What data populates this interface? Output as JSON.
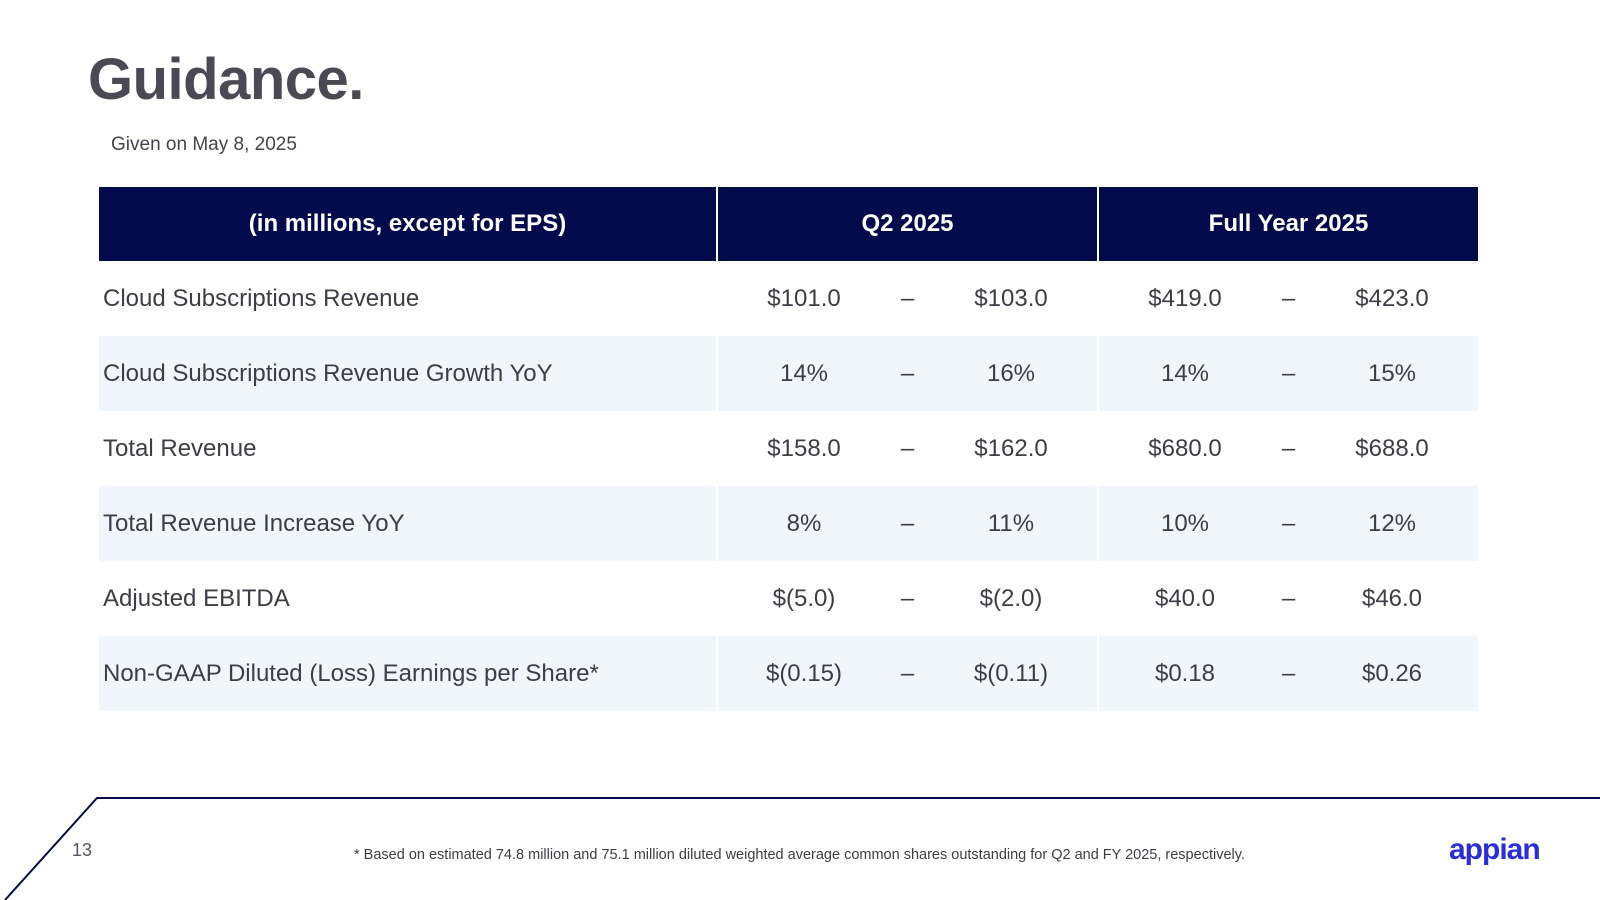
{
  "slide": {
    "title": "Guidance.",
    "subtitle": "Given on May 8, 2025",
    "page_number": "13",
    "footnote": "* Based on estimated 74.8 million and 75.1 million diluted weighted average common shares outstanding for Q2 and FY 2025, respectively.",
    "logo_text": "appian"
  },
  "table": {
    "headers": [
      "(in millions, except for EPS)",
      "Q2 2025",
      "Full Year 2025"
    ],
    "dash": "–",
    "rows": [
      {
        "label": "Cloud Subscriptions Revenue",
        "q2_low": "$101.0",
        "q2_high": "$103.0",
        "fy_low": "$419.0",
        "fy_high": "$423.0"
      },
      {
        "label": "Cloud Subscriptions Revenue Growth YoY",
        "q2_low": "14%",
        "q2_high": "16%",
        "fy_low": "14%",
        "fy_high": "15%"
      },
      {
        "label": "Total Revenue",
        "q2_low": "$158.0",
        "q2_high": "$162.0",
        "fy_low": "$680.0",
        "fy_high": "$688.0"
      },
      {
        "label": "Total Revenue Increase YoY",
        "q2_low": "8%",
        "q2_high": "11%",
        "fy_low": "10%",
        "fy_high": "12%"
      },
      {
        "label": "Adjusted EBITDA",
        "q2_low": "$(5.0)",
        "q2_high": "$(2.0)",
        "fy_low": "$40.0",
        "fy_high": "$46.0"
      },
      {
        "label": "Non-GAAP Diluted (Loss) Earnings per Share*",
        "q2_low": "$(0.15)",
        "q2_high": "$(0.11)",
        "fy_low": "$0.18",
        "fy_high": "$0.26"
      }
    ]
  },
  "colors": {
    "header_bg": "#030b4c",
    "row_alt_bg": "#f1f6fd",
    "logo": "#2a2ed6",
    "title": "#4a4a55"
  }
}
